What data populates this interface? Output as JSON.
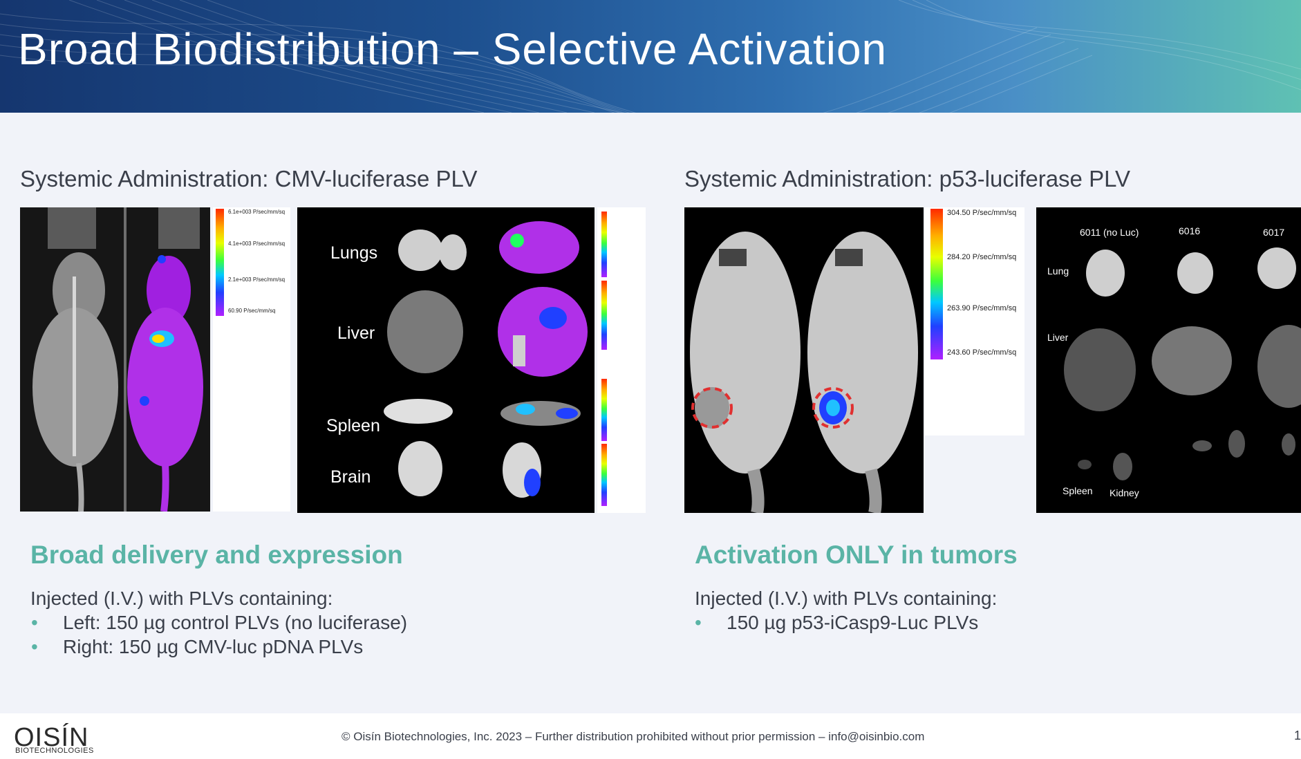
{
  "slide": {
    "title": "Broad Biodistribution –  Selective Activation"
  },
  "left": {
    "subtitle": "Systemic Administration: CMV-luciferase PLV",
    "colorbar_labels": [
      "6.1e+003 P/sec/mm/sq",
      "4.1e+003 P/sec/mm/sq",
      "2.1e+003 P/sec/mm/sq",
      "60.90 P/sec/mm/sq"
    ],
    "organs": [
      "Lungs",
      "Liver",
      "Spleen",
      "Brain"
    ],
    "heading": "Broad delivery and expression",
    "intro": "Injected (I.V.) with PLVs containing:",
    "bullets": [
      "Left: 150 µg control PLVs (no luciferase)",
      "Right: 150 µg CMV-luc pDNA PLVs"
    ]
  },
  "right": {
    "subtitle": "Systemic Administration: p53-luciferase PLV",
    "colorbar_labels": [
      "304.50 P/sec/mm/sq",
      "284.20 P/sec/mm/sq",
      "263.90 P/sec/mm/sq",
      "243.60 P/sec/mm/sq"
    ],
    "sample_ids": [
      "6011 (no Luc)",
      "6016",
      "6017"
    ],
    "organ_labels": {
      "lung": "Lung",
      "liver": "Liver",
      "spleen": "Spleen",
      "kidney": "Kidney"
    },
    "heading": "Activation ONLY in tumors",
    "intro": "Injected (I.V.) with PLVs containing:",
    "bullets": [
      "150 µg p53-iCasp9-Luc PLVs"
    ]
  },
  "footer": {
    "copyright": "© Oisín Biotechnologies, Inc. 2023 –  Further distribution prohibited without prior permission  –  info@oisinbio.com",
    "logo_text": "OISÍN",
    "logo_sub": "BIOTECHNOLOGIES",
    "page_number": "1"
  },
  "colors": {
    "accent_teal": "#5ab4a6",
    "header_start": "#15366f",
    "header_end": "#5fc1b3",
    "tumor_circle": "#e03030"
  }
}
